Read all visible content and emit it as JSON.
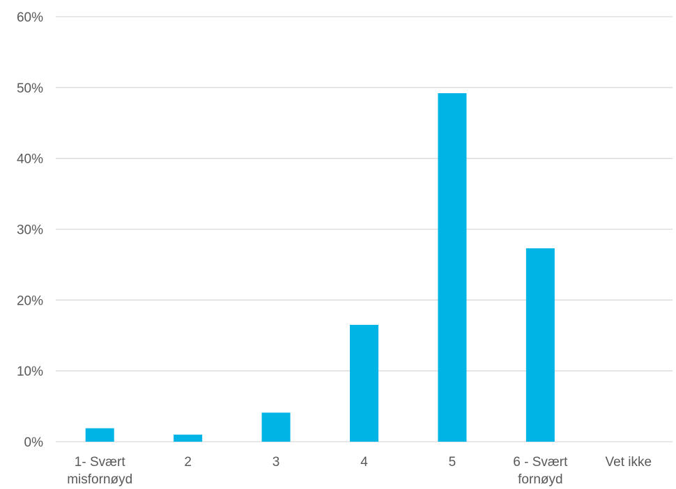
{
  "chart_data": {
    "type": "bar",
    "categories": [
      [
        "1- Svært",
        "misfornøyd"
      ],
      [
        "2"
      ],
      [
        "3"
      ],
      [
        "4"
      ],
      [
        "5"
      ],
      [
        "6 - Svært",
        "fornøyd"
      ],
      [
        "Vet ikke"
      ]
    ],
    "values": [
      1.9,
      1.0,
      4.1,
      16.5,
      49.2,
      27.3,
      0
    ],
    "ylim": [
      0,
      60
    ],
    "yticks": [
      0,
      10,
      20,
      30,
      40,
      50,
      60
    ],
    "ytick_format": "%",
    "grid": true,
    "legend": "none",
    "bar_color": "#00b4e6"
  }
}
